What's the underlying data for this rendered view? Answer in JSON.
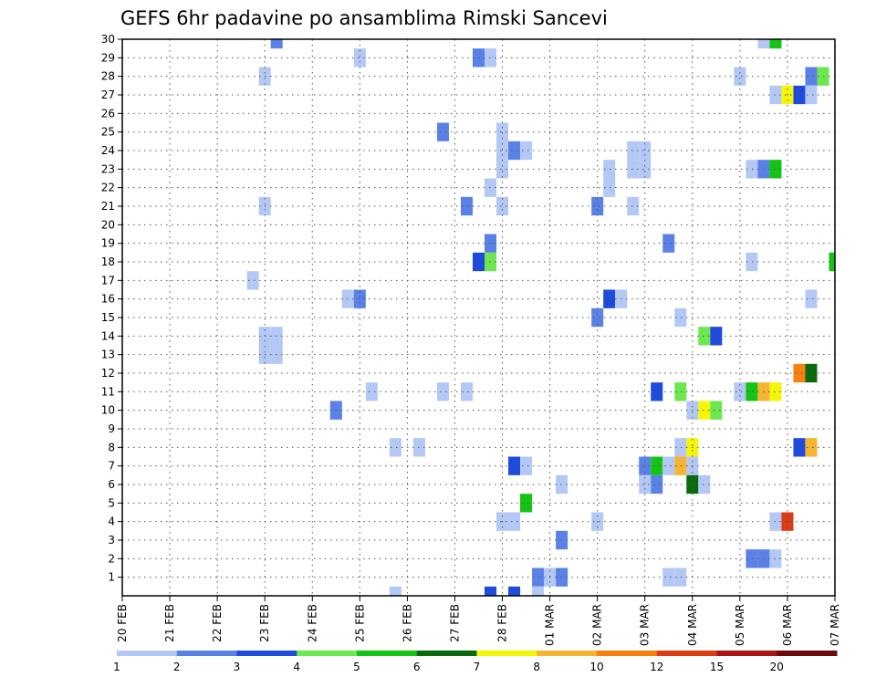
{
  "chart_data": {
    "type": "heatmap",
    "title": "GEFS 6hr padavine po ansamblima Rimski Sancevi",
    "xlabel": "",
    "ylabel": "",
    "x_tick_labels": [
      "20 FEB",
      "21 FEB",
      "22 FEB",
      "23 FEB",
      "24 FEB",
      "25 FEB",
      "26 FEB",
      "27 FEB",
      "28 FEB",
      "01 MAR",
      "02 MAR",
      "03 MAR",
      "04 MAR",
      "05 MAR",
      "06 MAR",
      "07 MAR"
    ],
    "y_tick_labels": [
      "1",
      "2",
      "3",
      "4",
      "5",
      "6",
      "7",
      "8",
      "9",
      "10",
      "11",
      "12",
      "13",
      "14",
      "15",
      "16",
      "17",
      "18",
      "19",
      "20",
      "21",
      "22",
      "23",
      "24",
      "25",
      "26",
      "27",
      "28",
      "29",
      "30"
    ],
    "xlim": [
      0,
      60
    ],
    "ylim": [
      0,
      30
    ],
    "grid": true,
    "colorbar": {
      "labels": [
        "1",
        "2",
        "3",
        "4",
        "5",
        "6",
        "7",
        "8",
        "10",
        "12",
        "15",
        "20"
      ],
      "colors": [
        "#b4c8f5",
        "#5a82e6",
        "#1e4bdc",
        "#6ee650",
        "#14c314",
        "#0a690a",
        "#f5f50a",
        "#f5b432",
        "#f5820f",
        "#dc3c14",
        "#aa1414",
        "#6e0a0a"
      ]
    },
    "cell_value_unit": "colorbar class index (0 = 1 to 2, 1 = 2 to 3, ...)",
    "cells": [
      {
        "t": 13,
        "m": 30,
        "c": 1
      },
      {
        "t": 54,
        "m": 30,
        "c": 0
      },
      {
        "t": 55,
        "m": 30,
        "c": 4
      },
      {
        "t": 20,
        "m": 29,
        "c": 0
      },
      {
        "t": 30,
        "m": 29,
        "c": 1
      },
      {
        "t": 31,
        "m": 29,
        "c": 0
      },
      {
        "t": 12,
        "m": 28,
        "c": 0
      },
      {
        "t": 52,
        "m": 28,
        "c": 0
      },
      {
        "t": 58,
        "m": 28,
        "c": 1
      },
      {
        "t": 59,
        "m": 28,
        "c": 3
      },
      {
        "t": 55,
        "m": 27,
        "c": 0
      },
      {
        "t": 56,
        "m": 27,
        "c": 6
      },
      {
        "t": 57,
        "m": 27,
        "c": 2
      },
      {
        "t": 58,
        "m": 27,
        "c": 0
      },
      {
        "t": 27,
        "m": 25,
        "c": 1
      },
      {
        "t": 32,
        "m": 25,
        "c": 0
      },
      {
        "t": 32,
        "m": 24,
        "c": 0
      },
      {
        "t": 33,
        "m": 24,
        "c": 1
      },
      {
        "t": 34,
        "m": 24,
        "c": 0
      },
      {
        "t": 43,
        "m": 24,
        "c": 0
      },
      {
        "t": 44,
        "m": 24,
        "c": 0
      },
      {
        "t": 32,
        "m": 23,
        "c": 0
      },
      {
        "t": 41,
        "m": 23,
        "c": 0
      },
      {
        "t": 43,
        "m": 23,
        "c": 0
      },
      {
        "t": 44,
        "m": 23,
        "c": 0
      },
      {
        "t": 53,
        "m": 23,
        "c": 0
      },
      {
        "t": 54,
        "m": 23,
        "c": 1
      },
      {
        "t": 55,
        "m": 23,
        "c": 4
      },
      {
        "t": 41,
        "m": 22,
        "c": 0
      },
      {
        "t": 31,
        "m": 22,
        "c": 0
      },
      {
        "t": 12,
        "m": 21,
        "c": 0
      },
      {
        "t": 29,
        "m": 21,
        "c": 1
      },
      {
        "t": 32,
        "m": 21,
        "c": 0
      },
      {
        "t": 40,
        "m": 21,
        "c": 1
      },
      {
        "t": 43,
        "m": 21,
        "c": 0
      },
      {
        "t": 31,
        "m": 19,
        "c": 1
      },
      {
        "t": 46,
        "m": 19,
        "c": 1
      },
      {
        "t": 30,
        "m": 18,
        "c": 2
      },
      {
        "t": 31,
        "m": 18,
        "c": 3
      },
      {
        "t": 53,
        "m": 18,
        "c": 0
      },
      {
        "t": 60,
        "m": 18,
        "c": 4
      },
      {
        "t": 11,
        "m": 17,
        "c": 0
      },
      {
        "t": 19,
        "m": 16,
        "c": 0
      },
      {
        "t": 20,
        "m": 16,
        "c": 1
      },
      {
        "t": 41,
        "m": 16,
        "c": 2
      },
      {
        "t": 42,
        "m": 16,
        "c": 0
      },
      {
        "t": 58,
        "m": 16,
        "c": 0
      },
      {
        "t": 40,
        "m": 15,
        "c": 1
      },
      {
        "t": 47,
        "m": 15,
        "c": 0
      },
      {
        "t": 12,
        "m": 14,
        "c": 0
      },
      {
        "t": 13,
        "m": 14,
        "c": 0
      },
      {
        "t": 49,
        "m": 14,
        "c": 3
      },
      {
        "t": 50,
        "m": 14,
        "c": 2
      },
      {
        "t": 12,
        "m": 13,
        "c": 0
      },
      {
        "t": 13,
        "m": 13,
        "c": 0
      },
      {
        "t": 57,
        "m": 12,
        "c": 8
      },
      {
        "t": 58,
        "m": 12,
        "c": 5
      },
      {
        "t": 21,
        "m": 11,
        "c": 0
      },
      {
        "t": 27,
        "m": 11,
        "c": 0
      },
      {
        "t": 29,
        "m": 11,
        "c": 0
      },
      {
        "t": 45,
        "m": 11,
        "c": 2
      },
      {
        "t": 47,
        "m": 11,
        "c": 3
      },
      {
        "t": 52,
        "m": 11,
        "c": 0
      },
      {
        "t": 53,
        "m": 11,
        "c": 4
      },
      {
        "t": 54,
        "m": 11,
        "c": 7
      },
      {
        "t": 55,
        "m": 11,
        "c": 6
      },
      {
        "t": 18,
        "m": 10,
        "c": 1
      },
      {
        "t": 48,
        "m": 10,
        "c": 0
      },
      {
        "t": 49,
        "m": 10,
        "c": 6
      },
      {
        "t": 50,
        "m": 10,
        "c": 3
      },
      {
        "t": 23,
        "m": 8,
        "c": 0
      },
      {
        "t": 25,
        "m": 8,
        "c": 0
      },
      {
        "t": 47,
        "m": 8,
        "c": 0
      },
      {
        "t": 48,
        "m": 8,
        "c": 6
      },
      {
        "t": 57,
        "m": 8,
        "c": 2
      },
      {
        "t": 58,
        "m": 8,
        "c": 7
      },
      {
        "t": 33,
        "m": 7,
        "c": 2
      },
      {
        "t": 34,
        "m": 7,
        "c": 0
      },
      {
        "t": 44,
        "m": 7,
        "c": 1
      },
      {
        "t": 45,
        "m": 7,
        "c": 4
      },
      {
        "t": 46,
        "m": 7,
        "c": 0
      },
      {
        "t": 47,
        "m": 7,
        "c": 7
      },
      {
        "t": 48,
        "m": 7,
        "c": 0
      },
      {
        "t": 37,
        "m": 6,
        "c": 0
      },
      {
        "t": 44,
        "m": 6,
        "c": 0
      },
      {
        "t": 45,
        "m": 6,
        "c": 1
      },
      {
        "t": 48,
        "m": 6,
        "c": 5
      },
      {
        "t": 49,
        "m": 6,
        "c": 0
      },
      {
        "t": 34,
        "m": 5,
        "c": 4
      },
      {
        "t": 32,
        "m": 4,
        "c": 0
      },
      {
        "t": 33,
        "m": 4,
        "c": 0
      },
      {
        "t": 40,
        "m": 4,
        "c": 0
      },
      {
        "t": 55,
        "m": 4,
        "c": 0
      },
      {
        "t": 56,
        "m": 4,
        "c": 9
      },
      {
        "t": 37,
        "m": 3,
        "c": 1
      },
      {
        "t": 53,
        "m": 2,
        "c": 1
      },
      {
        "t": 54,
        "m": 2,
        "c": 1
      },
      {
        "t": 55,
        "m": 2,
        "c": 0
      },
      {
        "t": 35,
        "m": 1,
        "c": 1
      },
      {
        "t": 36,
        "m": 1,
        "c": 0
      },
      {
        "t": 37,
        "m": 1,
        "c": 1
      },
      {
        "t": 46,
        "m": 1,
        "c": 0
      },
      {
        "t": 47,
        "m": 1,
        "c": 0
      },
      {
        "t": 23,
        "m": 0,
        "c": 0
      },
      {
        "t": 31,
        "m": 0,
        "c": 2
      },
      {
        "t": 33,
        "m": 0,
        "c": 2
      },
      {
        "t": 35,
        "m": 0,
        "c": 0
      }
    ]
  }
}
